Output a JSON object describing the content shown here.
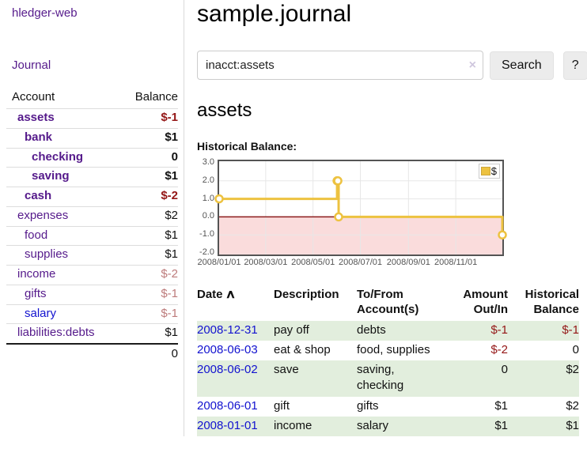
{
  "sidebar": {
    "brand": "hledger-web",
    "journal_link": "Journal",
    "header": {
      "account": "Account",
      "balance": "Balance"
    },
    "accounts": [
      {
        "name": "assets",
        "balance": "$-1"
      },
      {
        "name": "bank",
        "balance": "$1"
      },
      {
        "name": "checking",
        "balance": "0"
      },
      {
        "name": "saving",
        "balance": "$1"
      },
      {
        "name": "cash",
        "balance": "$-2"
      },
      {
        "name": "expenses",
        "balance": "$2"
      },
      {
        "name": "food",
        "balance": "$1"
      },
      {
        "name": "supplies",
        "balance": "$1"
      },
      {
        "name": "income",
        "balance": "$-2"
      },
      {
        "name": "gifts",
        "balance": "$-1"
      },
      {
        "name": "salary",
        "balance": "$-1"
      },
      {
        "name": "liabilities:debts",
        "balance": "$1"
      }
    ],
    "total": "0"
  },
  "main": {
    "title": "sample.journal",
    "search": {
      "value": "inacct:assets",
      "clear_icon": "×",
      "button_label": "Search",
      "help_label": "?"
    },
    "account_heading": "assets",
    "chart_heading": "Historical Balance:"
  },
  "chart_data": {
    "type": "line",
    "step": true,
    "title": "Historical Balance",
    "x_range": [
      "2008-01-01",
      "2008-12-31"
    ],
    "ylim": [
      -2,
      3
    ],
    "y_ticks": [
      3,
      2,
      1,
      0,
      -1,
      -2
    ],
    "y_tick_labels": [
      "3.0",
      "2.0",
      "1.0",
      "0.0",
      "-1.0",
      "-2.0"
    ],
    "x_tick_dates": [
      "2008-01-01",
      "2008-03-01",
      "2008-05-01",
      "2008-07-01",
      "2008-09-01",
      "2008-11-01"
    ],
    "x_tick_labels": [
      "2008/01/01",
      "2008/03/01",
      "2008/05/01",
      "2008/07/01",
      "2008/09/01",
      "2008/11/01"
    ],
    "grid": true,
    "legend": {
      "position": "top-right",
      "label": "$"
    },
    "series": [
      {
        "name": "$",
        "color": "#edc240",
        "marker": "open-circle",
        "points": [
          {
            "date": "2008-01-01",
            "balance": 1
          },
          {
            "date": "2008-06-01",
            "balance": 2
          },
          {
            "date": "2008-06-02",
            "balance": 2
          },
          {
            "date": "2008-06-03",
            "balance": 0
          },
          {
            "date": "2008-12-31",
            "balance": -1
          }
        ]
      }
    ],
    "colors": {
      "negative_fill": "#fadcdc",
      "zero_line": "#8b1a1a",
      "grid_line": "#e7e7e7",
      "plot_border": "#545454"
    }
  },
  "register": {
    "headers": {
      "date": "Date",
      "sort_icon": "∧",
      "description": "Description",
      "accounts": "To/From Account(s)",
      "amount": "Amount Out/In",
      "balance": "Historical Balance"
    },
    "rows": [
      {
        "date": "2008-12-31",
        "description": "pay off",
        "accounts": "debts",
        "amount": "$-1",
        "balance": "$-1"
      },
      {
        "date": "2008-06-03",
        "description": "eat & shop",
        "accounts": "food, supplies",
        "amount": "$-2",
        "balance": "0"
      },
      {
        "date": "2008-06-02",
        "description": "save",
        "accounts": "saving, checking",
        "amount": "0",
        "balance": "$2"
      },
      {
        "date": "2008-06-01",
        "description": "gift",
        "accounts": "gifts",
        "amount": "$1",
        "balance": "$2"
      },
      {
        "date": "2008-01-01",
        "description": "income",
        "accounts": "salary",
        "amount": "$1",
        "balance": "$1"
      }
    ]
  }
}
